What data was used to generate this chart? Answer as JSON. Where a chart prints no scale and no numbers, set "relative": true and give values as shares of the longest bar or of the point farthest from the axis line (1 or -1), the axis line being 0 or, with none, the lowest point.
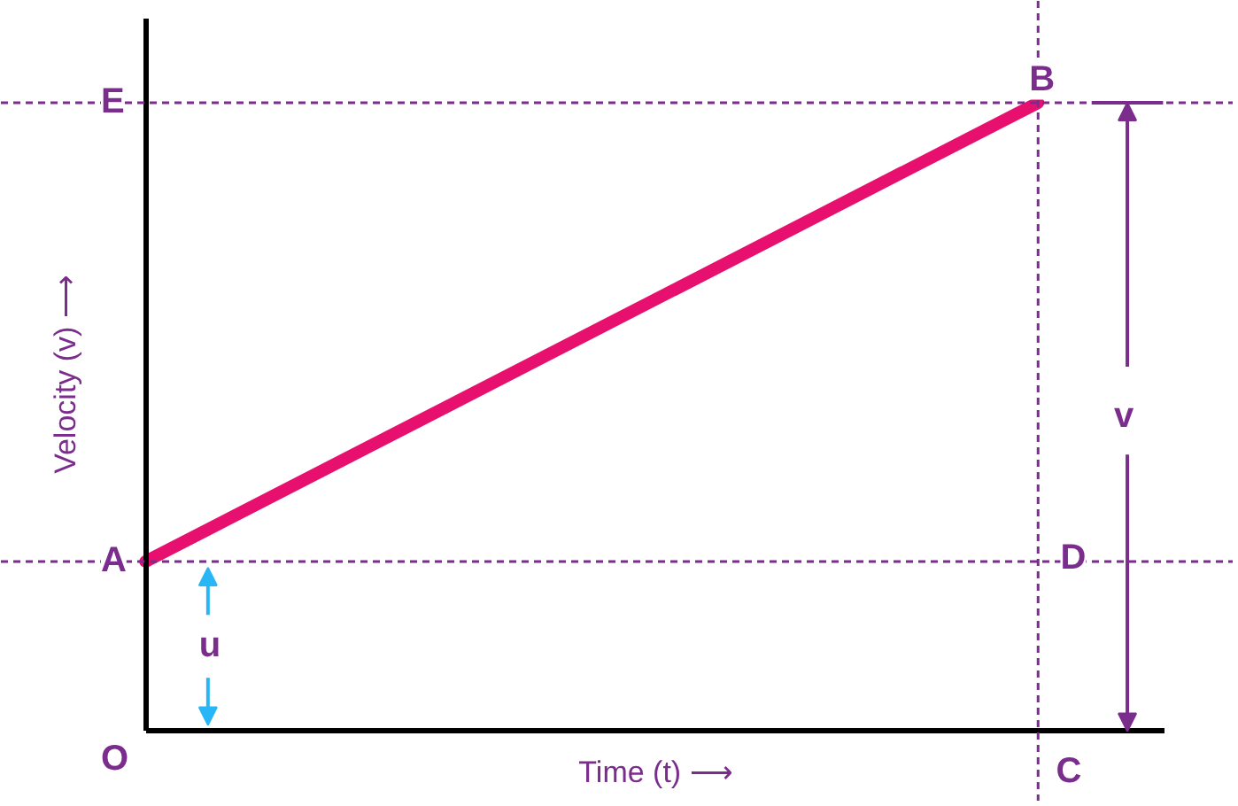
{
  "chart_data": {
    "type": "line",
    "relative": true,
    "categories": [
      null,
      null
    ],
    "xlabel": "Time (t) ⟶",
    "ylabel": "Velocity (v) ⟶",
    "tick_labels": false,
    "grid": false,
    "line_style": "solid",
    "series": [
      {
        "color": "#e8106e",
        "values": [
          0.27,
          1
        ]
      }
    ],
    "ref_lines": [
      {
        "axis": "y",
        "value": 1,
        "color": "#7b2d8e",
        "line_style": "dashed"
      },
      {
        "axis": "y",
        "value": 0.27,
        "color": "#7b2d8e",
        "line_style": "dashed"
      }
    ],
    "annotations": [
      "O",
      "A",
      "E",
      "B",
      "C",
      "D",
      "u",
      "v"
    ]
  }
}
